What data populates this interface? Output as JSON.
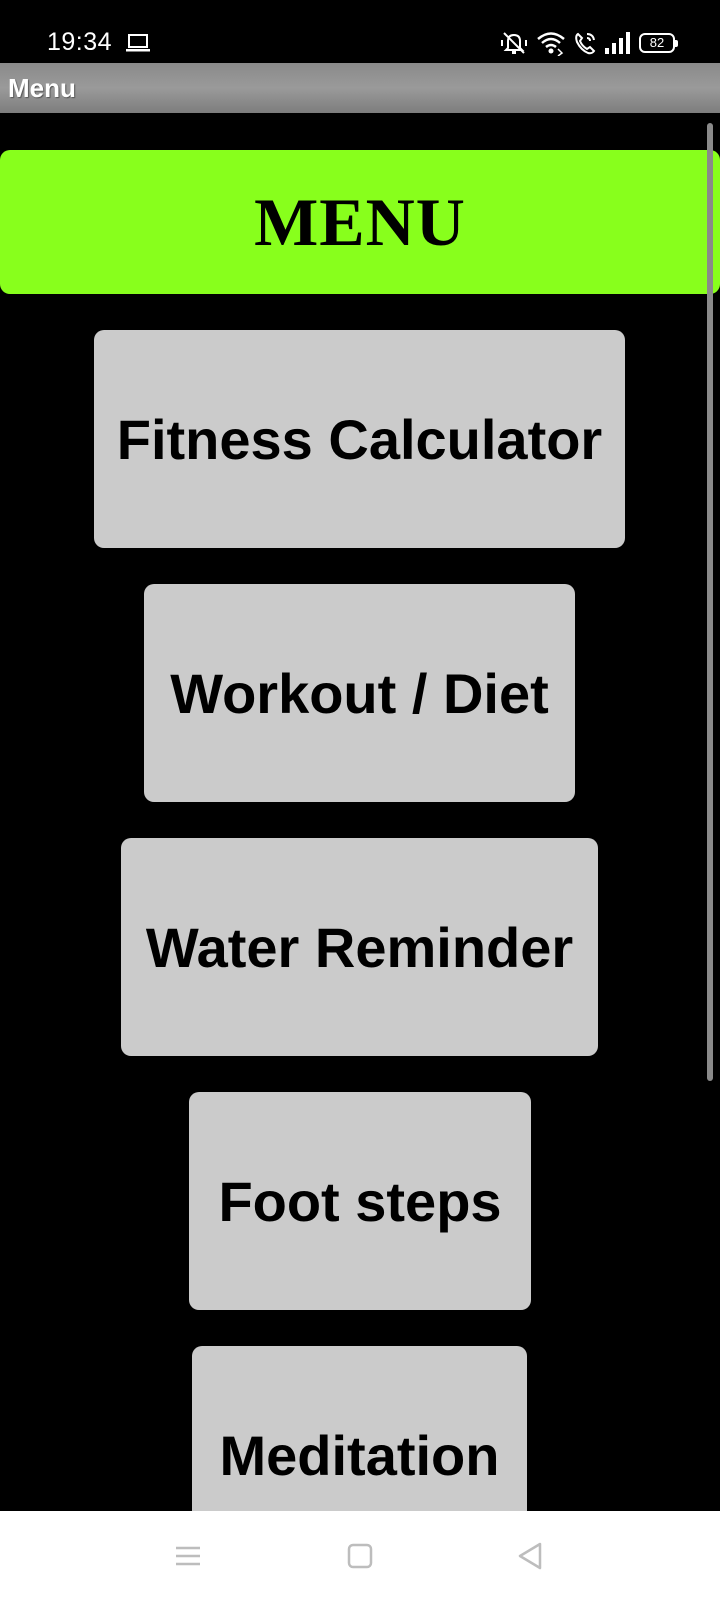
{
  "status_bar": {
    "time": "19:34",
    "battery_level": "82",
    "icons": [
      "laptop-icon",
      "mute-icon",
      "wifi-icon",
      "wifi-call-icon",
      "signal-icon",
      "battery-icon"
    ]
  },
  "action_bar": {
    "title": "Menu"
  },
  "menu": {
    "banner_title": "MENU",
    "items": [
      {
        "label": "Fitness Calculator"
      },
      {
        "label": "Workout / Diet"
      },
      {
        "label": "Water Reminder"
      },
      {
        "label": "Foot steps"
      },
      {
        "label": "Meditation"
      }
    ]
  },
  "nav_bar": {
    "icons": [
      "recents-icon",
      "home-icon",
      "back-icon"
    ]
  },
  "colors": {
    "banner": "#88ff1c",
    "button": "#cbcbcb",
    "background": "#000000",
    "action_bar": "#8f8f8f"
  }
}
